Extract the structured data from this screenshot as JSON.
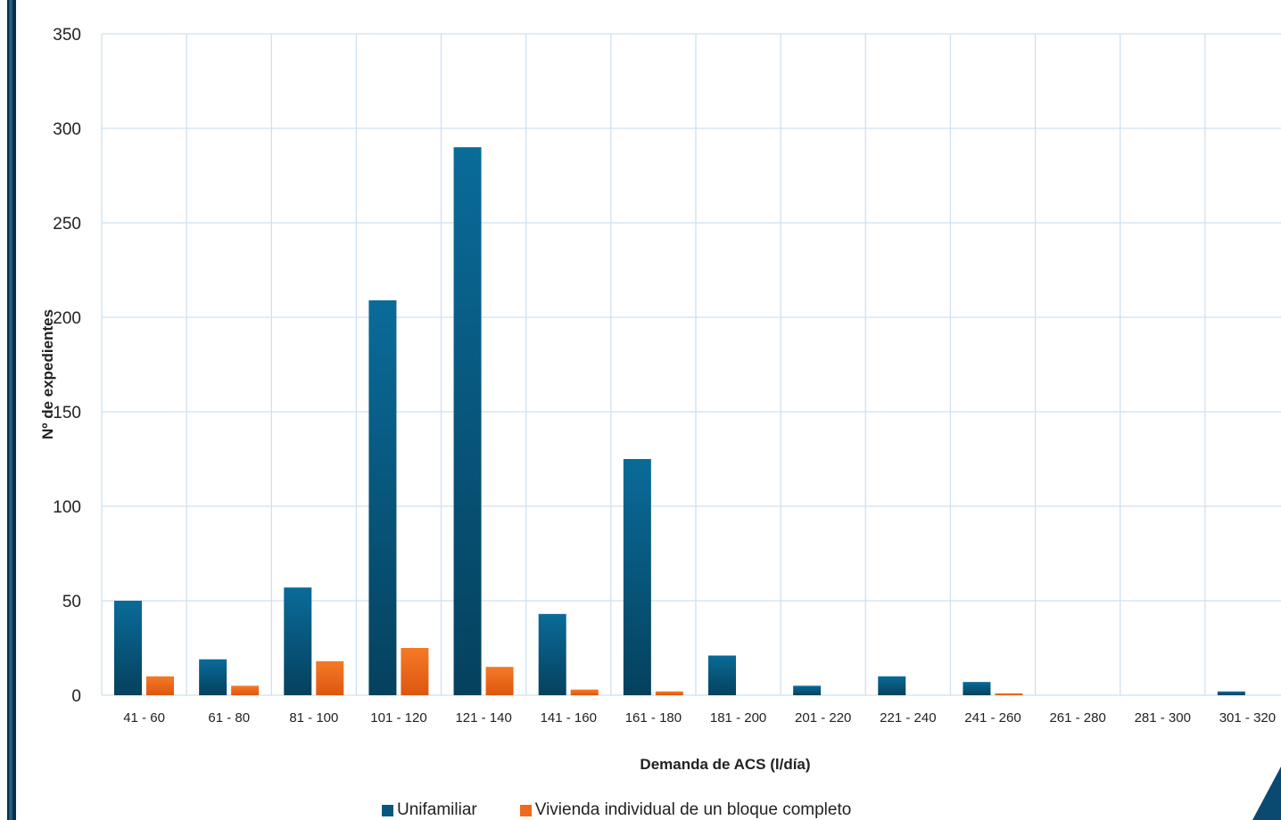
{
  "chart_data": {
    "type": "bar",
    "categories": [
      "41 - 60",
      "61 - 80",
      "81 - 100",
      "101 - 120",
      "121 - 140",
      "141 - 160",
      "161 - 180",
      "181 - 200",
      "201 - 220",
      "221 - 240",
      "241 - 260",
      "261 - 280",
      "281 - 300",
      "301 - 320"
    ],
    "series": [
      {
        "name": "Unifamiliar",
        "color": "#06577f",
        "values": [
          50,
          19,
          57,
          209,
          290,
          43,
          125,
          21,
          5,
          10,
          7,
          0,
          0,
          2
        ]
      },
      {
        "name": "Vivienda individual de un bloque completo",
        "color": "#f06a1c",
        "values": [
          10,
          5,
          18,
          25,
          15,
          3,
          2,
          0,
          0,
          0,
          1,
          0,
          0,
          0
        ]
      }
    ],
    "xlabel": "Demanda de ACS (l/día)",
    "ylabel": "Nº de expedientes",
    "ylim": [
      0,
      350
    ],
    "yticks": [
      0,
      50,
      100,
      150,
      200,
      250,
      300,
      350
    ],
    "grid": true,
    "legend": "bottom"
  }
}
